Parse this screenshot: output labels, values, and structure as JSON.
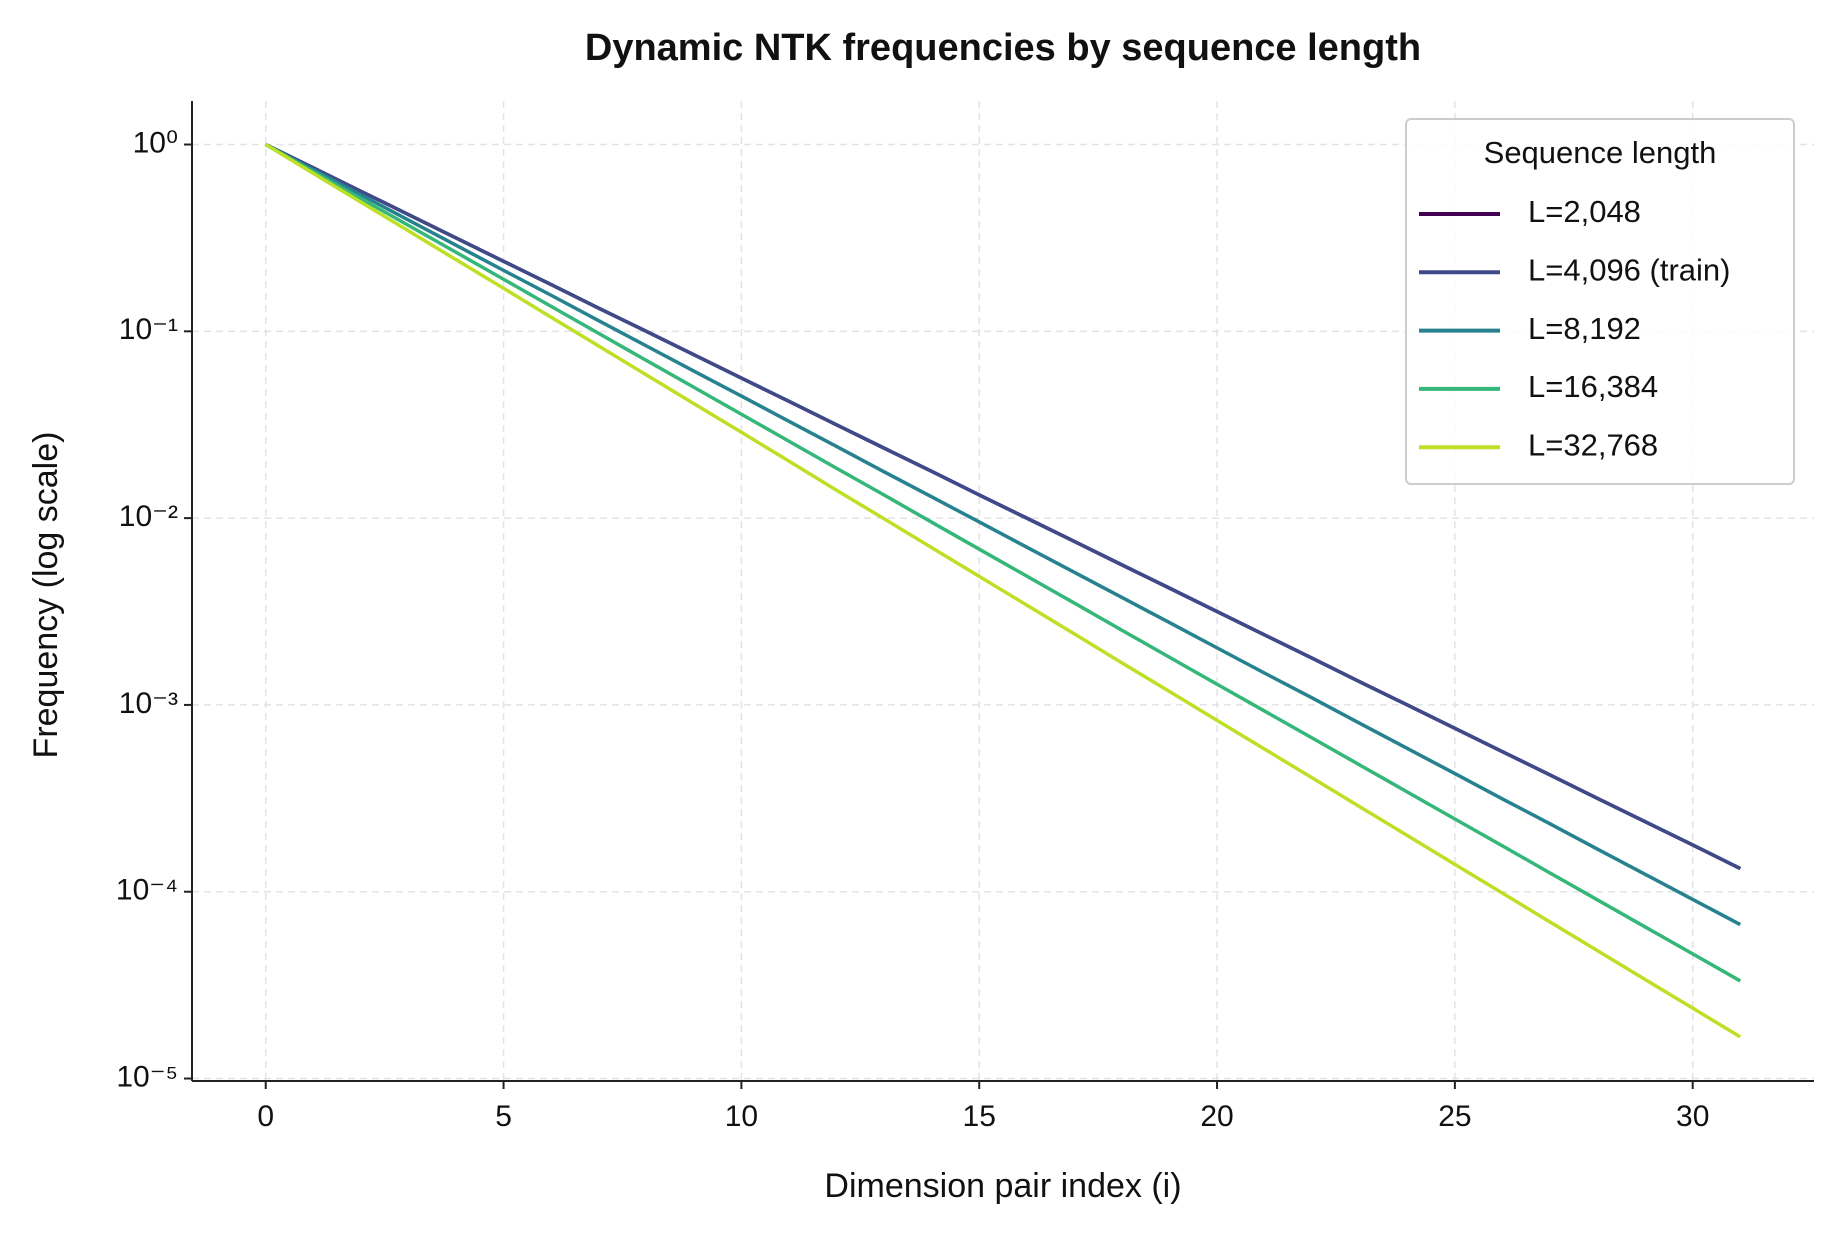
{
  "chart_data": {
    "type": "line",
    "title": "Dynamic NTK frequencies by sequence length",
    "xlabel": "Dimension pair index (i)",
    "ylabel": "Frequency (log scale)",
    "yscale": "log",
    "grid": true,
    "legend": {
      "title": "Sequence length",
      "position": "upper right"
    },
    "xlim": [
      -1.55,
      32.55
    ],
    "xticks": [
      0,
      5,
      10,
      15,
      20,
      25,
      30
    ],
    "ylim": [
      9.7e-06,
      1.71
    ],
    "yticks": [
      {
        "value": 1e-05,
        "label": "10⁻⁵"
      },
      {
        "value": 0.0001,
        "label": "10⁻⁴"
      },
      {
        "value": 0.001,
        "label": "10⁻³"
      },
      {
        "value": 0.01,
        "label": "10⁻²"
      },
      {
        "value": 0.1,
        "label": "10⁻¹"
      },
      {
        "value": 1,
        "label": "10⁰"
      }
    ],
    "x": [
      0,
      1,
      2,
      3,
      4,
      5,
      6,
      7,
      8,
      9,
      10,
      11,
      12,
      13,
      14,
      15,
      16,
      17,
      18,
      19,
      20,
      21,
      22,
      23,
      24,
      25,
      26,
      27,
      28,
      29,
      30,
      31
    ],
    "series": [
      {
        "name": "L=2,048",
        "color": "#440154",
        "values": [
          1,
          0.75,
          0.562,
          0.422,
          0.316,
          0.237,
          0.178,
          0.133,
          0.1,
          0.075,
          0.0562,
          0.0422,
          0.0316,
          0.0237,
          0.0178,
          0.0133,
          0.01,
          0.0075,
          0.00562,
          0.00422,
          0.00316,
          0.00237,
          0.00178,
          0.00133,
          0.001,
          0.00075,
          0.000562,
          0.000422,
          0.000316,
          0.000237,
          0.000178,
          0.000133
        ]
      },
      {
        "name": "L=4,096 (train)",
        "color": "#3e4a89",
        "values": [
          1,
          0.75,
          0.562,
          0.422,
          0.316,
          0.237,
          0.178,
          0.133,
          0.1,
          0.075,
          0.0562,
          0.0422,
          0.0316,
          0.0237,
          0.0178,
          0.0133,
          0.01,
          0.0075,
          0.00562,
          0.00422,
          0.00316,
          0.00237,
          0.00178,
          0.00133,
          0.001,
          0.00075,
          0.000562,
          0.000422,
          0.000316,
          0.000237,
          0.000178,
          0.000133
        ]
      },
      {
        "name": "L=8,192",
        "color": "#26828e",
        "values": [
          1,
          0.733,
          0.538,
          0.394,
          0.289,
          0.212,
          0.156,
          0.114,
          0.0836,
          0.0613,
          0.045,
          0.033,
          0.0242,
          0.0177,
          0.013,
          0.00954,
          0.00699,
          0.00513,
          0.00376,
          0.00276,
          0.00202,
          0.00148,
          0.00109,
          0.000797,
          0.000585,
          0.000429,
          0.000314,
          0.000231,
          0.000169,
          0.000124,
          9.09e-05,
          6.67e-05
        ]
      },
      {
        "name": "L=16,384",
        "color": "#35b779",
        "values": [
          1,
          0.717,
          0.514,
          0.369,
          0.265,
          0.19,
          0.136,
          0.0975,
          0.0699,
          0.0502,
          0.036,
          0.0258,
          0.0185,
          0.0133,
          0.00951,
          0.00682,
          0.00489,
          0.00351,
          0.00251,
          0.0018,
          0.00129,
          0.000927,
          0.000665,
          0.000477,
          0.000342,
          0.000245,
          0.000176,
          0.000126,
          9.04e-05,
          6.48e-05,
          4.65e-05,
          3.33e-05
        ]
      },
      {
        "name": "L=32,768",
        "color": "#bddf26",
        "values": [
          1,
          0.701,
          0.492,
          0.345,
          0.242,
          0.17,
          0.119,
          0.0834,
          0.0585,
          0.041,
          0.0288,
          0.0202,
          0.0141,
          0.00992,
          0.00695,
          0.00488,
          0.00342,
          0.0024,
          0.00168,
          0.00118,
          0.000827,
          0.00058,
          0.000407,
          0.000285,
          0.0002,
          0.00014,
          9.83e-05,
          6.89e-05,
          4.83e-05,
          3.39e-05,
          2.38e-05,
          1.67e-05
        ]
      }
    ]
  }
}
